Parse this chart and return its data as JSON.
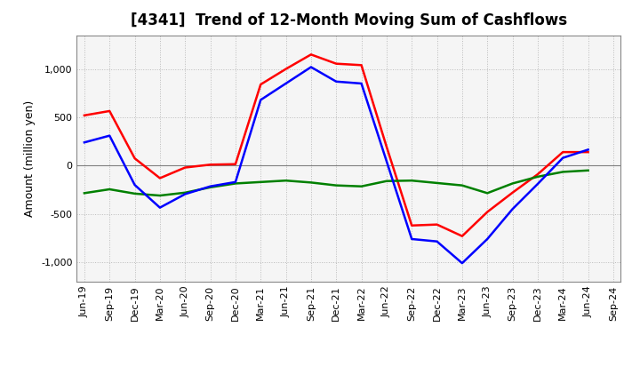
{
  "title": "[4341]  Trend of 12-Month Moving Sum of Cashflows",
  "ylabel": "Amount (million yen)",
  "x_labels": [
    "Jun-19",
    "Sep-19",
    "Dec-19",
    "Mar-20",
    "Jun-20",
    "Sep-20",
    "Dec-20",
    "Mar-21",
    "Jun-21",
    "Sep-21",
    "Dec-21",
    "Mar-22",
    "Jun-22",
    "Sep-22",
    "Dec-22",
    "Mar-23",
    "Jun-23",
    "Sep-23",
    "Dec-23",
    "Mar-24",
    "Jun-24",
    "Sep-24"
  ],
  "operating": [
    520,
    565,
    75,
    -130,
    -20,
    10,
    15,
    840,
    1000,
    1150,
    1055,
    1040,
    195,
    -620,
    -610,
    -730,
    -480,
    -280,
    -90,
    140,
    140,
    null
  ],
  "investing": [
    -285,
    -245,
    -290,
    -310,
    -280,
    -225,
    -185,
    -170,
    -155,
    -175,
    -205,
    -215,
    -160,
    -155,
    -180,
    -205,
    -285,
    -185,
    -115,
    -65,
    -50,
    null
  ],
  "free": [
    240,
    310,
    -200,
    -435,
    -295,
    -215,
    -170,
    680,
    850,
    1020,
    870,
    850,
    45,
    -760,
    -785,
    -1010,
    -760,
    -450,
    -190,
    80,
    165,
    null
  ],
  "operating_color": "#ff0000",
  "investing_color": "#008000",
  "free_color": "#0000ff",
  "background_color": "#ffffff",
  "plot_bg_color": "#f5f5f5",
  "grid_color": "#bbbbbb",
  "zero_line_color": "#808080",
  "ylim": [
    -1200,
    1350
  ],
  "yticks": [
    -1000,
    -500,
    0,
    500,
    1000
  ],
  "title_fontsize": 12,
  "axis_fontsize": 9,
  "tick_fontsize": 8,
  "legend_fontsize": 9,
  "linewidth": 1.8
}
